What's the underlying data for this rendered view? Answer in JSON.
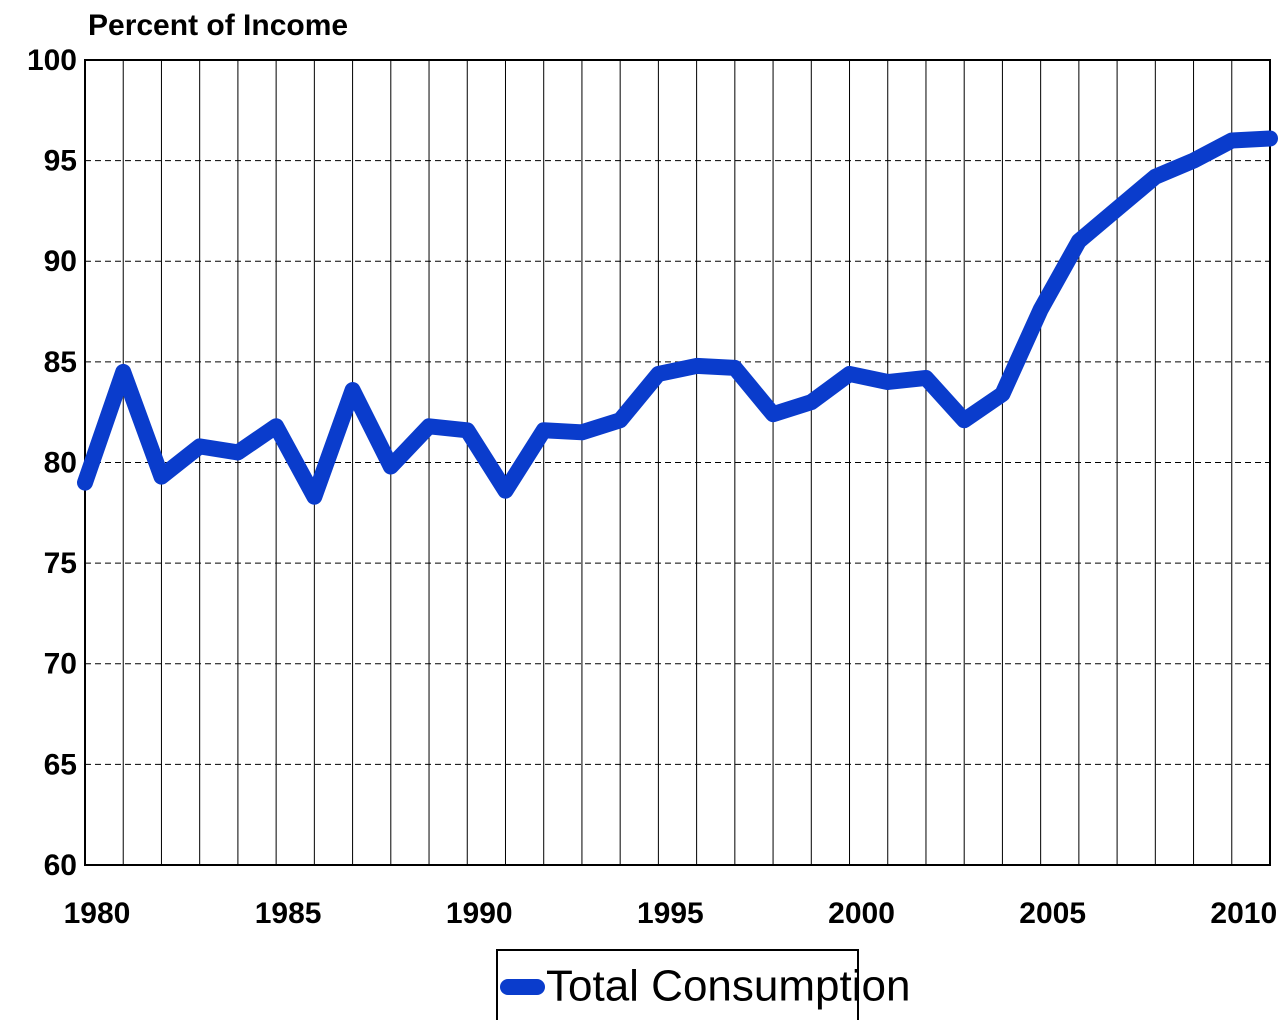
{
  "chart_data": {
    "type": "line",
    "title": "Percent of Income",
    "x": [
      1980,
      1981,
      1982,
      1983,
      1984,
      1985,
      1986,
      1987,
      1988,
      1989,
      1990,
      1991,
      1992,
      1993,
      1994,
      1995,
      1996,
      1997,
      1998,
      1999,
      2000,
      2001,
      2002,
      2003,
      2004,
      2005,
      2006,
      2007,
      2008,
      2009,
      2010,
      2011
    ],
    "series": [
      {
        "name": "Total Consumption",
        "color": "#0a3ccc",
        "values": [
          79.0,
          84.5,
          79.3,
          80.8,
          80.5,
          81.8,
          78.3,
          83.6,
          79.8,
          81.8,
          81.6,
          78.6,
          81.6,
          81.5,
          82.1,
          84.4,
          84.8,
          84.7,
          82.4,
          83.0,
          84.4,
          84.0,
          84.2,
          82.1,
          83.4,
          87.6,
          91.0,
          92.6,
          94.2,
          95.0,
          96.0,
          96.1
        ]
      }
    ],
    "xlim": [
      1980,
      2011
    ],
    "xticks": [
      1980,
      1985,
      1990,
      1995,
      2000,
      2005,
      2010
    ],
    "ylim": [
      60,
      100
    ],
    "yticks": [
      60,
      65,
      70,
      75,
      80,
      85,
      90,
      95,
      100
    ],
    "grid": true,
    "legend": "bottom"
  }
}
